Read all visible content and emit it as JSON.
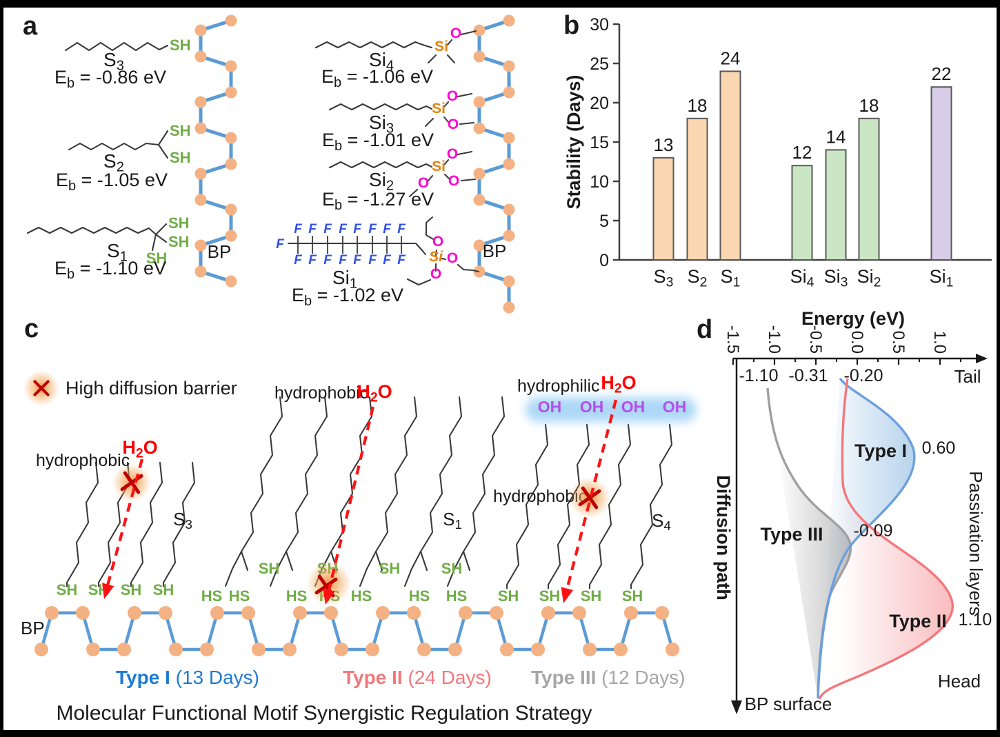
{
  "colors": {
    "bp_atom": "#F4B183",
    "bp_bond": "#5B9BD5",
    "thiol_green": "#6FAD45",
    "oh_purple": "#B44FE8",
    "si_orange": "#E8820C",
    "o_magenta": "#FF00CC",
    "f_blue": "#3050E8",
    "bar_orange": "#FAD7B0",
    "bar_green": "#CBE6C4",
    "bar_purple": "#D8CDE8",
    "type1_blue": "#1D7AD4",
    "type2_red": "#F4777B",
    "type3_gray": "#A6A6A6",
    "h2o_red": "#FF0000",
    "barrier_red": "#BE0000",
    "glow_orange": "#F2953F",
    "hydrophilic_band": "#9FD1F6"
  },
  "panel_a": {
    "label": "a",
    "bp": "BP",
    "sh": "SH",
    "si": "Si",
    "o": "O",
    "f": "F",
    "molecules": [
      {
        "name": "S₃",
        "eb_pre": "E",
        "eb_sub": "b",
        "eb_rest": " = -0.86 eV"
      },
      {
        "name": "S₂",
        "eb_pre": "E",
        "eb_sub": "b",
        "eb_rest": " = -1.05 eV"
      },
      {
        "name": "S₁",
        "eb_pre": "E",
        "eb_sub": "b",
        "eb_rest": " = -1.10 eV"
      },
      {
        "name": "Si₄",
        "eb_pre": "E",
        "eb_sub": "b",
        "eb_rest": " = -1.06 eV"
      },
      {
        "name": "Si₃",
        "eb_pre": "E",
        "eb_sub": "b",
        "eb_rest": " = -1.01 eV"
      },
      {
        "name": "Si₂",
        "eb_pre": "E",
        "eb_sub": "b",
        "eb_rest": " = -1.27 eV"
      },
      {
        "name": "Si₁",
        "eb_pre": "E",
        "eb_sub": "b",
        "eb_rest": " = -1.02 eV"
      }
    ]
  },
  "panel_b": {
    "label": "b"
  },
  "panel_c": {
    "label": "c",
    "legend": "High diffusion barrier",
    "bp": "BP",
    "h2o": "H₂O",
    "sh": "SH",
    "hs": "HS",
    "oh": "OH",
    "hydrophobic": "hydrophobic",
    "hydrophilic": "hydrophilic",
    "mol1": "S₃",
    "mol2": "S₁",
    "mol3": "S₄",
    "types": [
      {
        "name": "Type I",
        "days": " (13 Days)",
        "color": "#1D7AD4"
      },
      {
        "name": "Type II",
        "days": " (24 Days)",
        "color": "#F4777B"
      },
      {
        "name": "Type III",
        "days": " (12 Days)",
        "color": "#A6A6A6"
      }
    ],
    "caption": "Molecular Functional Motif Synergistic Regulation Strategy"
  },
  "panel_d": {
    "label": "d",
    "tail": "Tail",
    "head": "Head",
    "bp_surface": "BP surface"
  },
  "chart_data": [
    {
      "id": "stability_bars",
      "type": "bar",
      "title": "",
      "xlabel": "",
      "ylabel": "Stability (Days)",
      "ylim": [
        0,
        30
      ],
      "yticks": [
        0,
        5,
        10,
        15,
        20,
        25,
        30
      ],
      "grid": false,
      "categories": [
        "S₃",
        "S₂",
        "S₁",
        "Si₄",
        "Si₃",
        "Si₂",
        "Si₁"
      ],
      "values": [
        13,
        18,
        24,
        12,
        14,
        18,
        22
      ],
      "value_labels": [
        "13",
        "18",
        "24",
        "12",
        "14",
        "18",
        "22"
      ],
      "bar_colors": [
        "#FAD7B0",
        "#FAD7B0",
        "#FAD7B0",
        "#CBE6C4",
        "#CBE6C4",
        "#CBE6C4",
        "#D8CDE8"
      ],
      "legend_position": "none"
    },
    {
      "id": "energy_profiles",
      "type": "line",
      "xlabel": "Energy (eV)",
      "xlim": [
        -1.5,
        1.25
      ],
      "xticks": [
        "-1.5",
        "-1.0",
        "-0.5",
        "0.0",
        "0.5",
        "1.0"
      ],
      "axis_left_label": "Diffusion path",
      "axis_right_label": "Passivation layers",
      "annotations": {
        "tail": "Tail",
        "head": "Head",
        "bp_surface": "BP surface"
      },
      "series": [
        {
          "name": "Type I",
          "color": "#5B9BD5",
          "tail_energy": -0.31,
          "tail_label": "-0.31",
          "peak_energy": 0.6,
          "peak_label": "0.60"
        },
        {
          "name": "Type II",
          "color": "#F4777B",
          "tail_energy": -0.2,
          "tail_label": "-0.20",
          "peak_energy": 1.1,
          "peak_label": "1.10"
        },
        {
          "name": "Type III",
          "color": "#A6A6A6",
          "tail_energy": -1.1,
          "tail_label": "-1.10",
          "peak_energy": -0.09,
          "peak_label": "-0.09"
        }
      ]
    }
  ]
}
